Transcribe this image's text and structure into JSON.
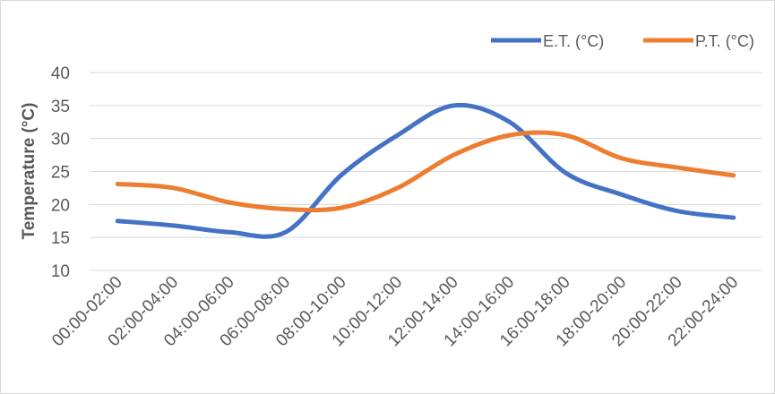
{
  "chart_data": {
    "type": "line",
    "smooth": true,
    "title": "",
    "xlabel": "",
    "ylabel": "Temperature (°C)",
    "ylim": [
      10,
      40
    ],
    "yticks": [
      10,
      15,
      20,
      25,
      30,
      35,
      40
    ],
    "grid": true,
    "legend": "top-right",
    "categories": [
      "00:00-02:00",
      "02:00-04:00",
      "04:00-06:00",
      "06:00-08:00",
      "08:00-10:00",
      "10:00-12:00",
      "12:00-14:00",
      "14:00-16:00",
      "16:00-18:00",
      "18:00-20:00",
      "20:00-22:00",
      "22:00-24:00"
    ],
    "series": [
      {
        "name": "E.T. (°C)",
        "color": "#4472C4",
        "values": [
          17.5,
          16.8,
          15.8,
          15.8,
          24.5,
          30.5,
          35.0,
          32.5,
          24.8,
          21.5,
          19.0,
          18.0
        ]
      },
      {
        "name": "P.T. (°C)",
        "color": "#ED7D31",
        "values": [
          23.1,
          22.5,
          20.3,
          19.3,
          19.5,
          22.5,
          27.5,
          30.5,
          30.5,
          27.0,
          25.6,
          24.4
        ]
      }
    ]
  }
}
